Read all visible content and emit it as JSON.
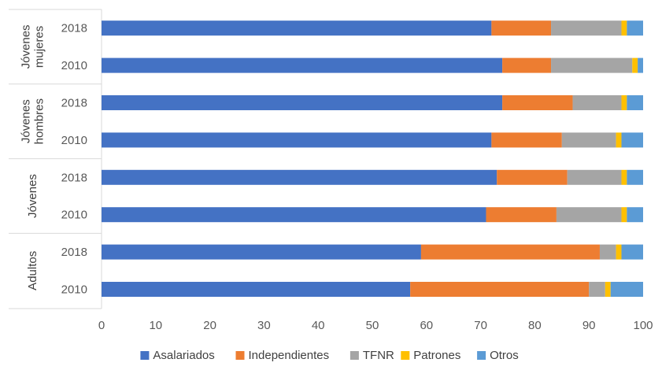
{
  "chart_data": {
    "type": "stacked-bar-horizontal",
    "xlim": [
      0,
      100
    ],
    "x_ticks": [
      "0",
      "10",
      "20",
      "30",
      "40",
      "50",
      "60",
      "70",
      "80",
      "90",
      "100"
    ],
    "groups": [
      {
        "label": "Jóvenes mujeres",
        "label_lines": [
          "Jóvenes",
          "mujeres"
        ]
      },
      {
        "label": "Jóvenes hombres",
        "label_lines": [
          "Jóvenes",
          "hombres"
        ]
      },
      {
        "label": "Jóvenes",
        "label_lines": [
          "Jóvenes"
        ]
      },
      {
        "label": "Adultos",
        "label_lines": [
          "Adultos"
        ]
      }
    ],
    "rows": [
      {
        "group": 0,
        "year": "2018",
        "values": [
          72,
          11,
          13,
          1,
          3
        ]
      },
      {
        "group": 0,
        "year": "2010",
        "values": [
          74,
          9,
          15,
          1,
          1
        ]
      },
      {
        "group": 1,
        "year": "2018",
        "values": [
          74,
          13,
          9,
          1,
          3
        ]
      },
      {
        "group": 1,
        "year": "2010",
        "values": [
          72,
          13,
          10,
          1,
          4
        ]
      },
      {
        "group": 2,
        "year": "2018",
        "values": [
          73,
          13,
          10,
          1,
          3
        ]
      },
      {
        "group": 2,
        "year": "2010",
        "values": [
          71,
          13,
          12,
          1,
          3
        ]
      },
      {
        "group": 3,
        "year": "2018",
        "values": [
          59,
          33,
          3,
          1,
          4
        ]
      },
      {
        "group": 3,
        "year": "2010",
        "values": [
          57,
          33,
          3,
          1,
          6
        ]
      }
    ],
    "series": [
      {
        "name": "Asalariados",
        "color": "#4472C4"
      },
      {
        "name": "Independientes",
        "color": "#ED7D31"
      },
      {
        "name": "TFNR",
        "color": "#A5A5A5"
      },
      {
        "name": "Patrones",
        "color": "#FFC000"
      },
      {
        "name": "Otros",
        "color": "#5B9BD5"
      }
    ],
    "legend_position": "bottom"
  }
}
